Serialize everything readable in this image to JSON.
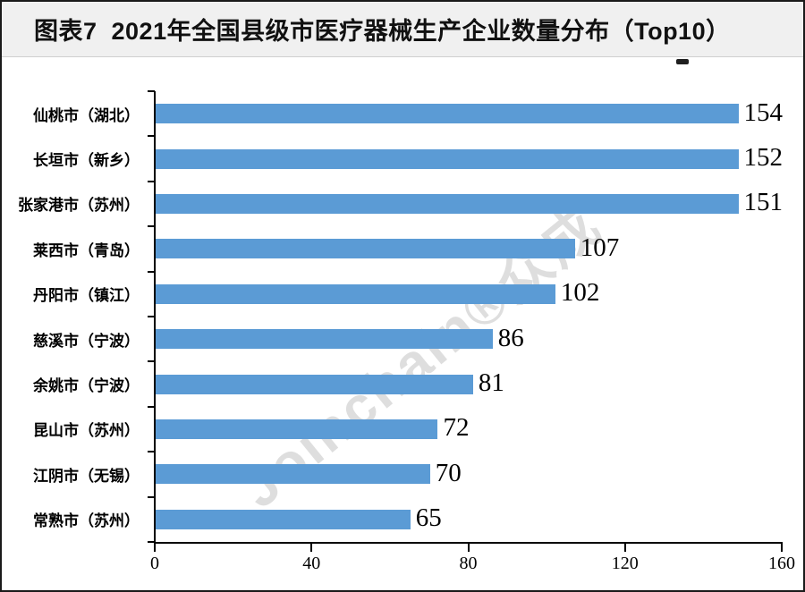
{
  "title": "图表7  2021年全国县级市医疗器械生产企业数量分布（Top10）",
  "watermark": "Joinchain®众成",
  "colors": {
    "bar": "#5B9BD5",
    "title_bg": "#f0f0f0",
    "frame_border": "#1a1a1a",
    "watermark": "rgba(0,0,0,0.13)"
  },
  "chart_data": {
    "type": "bar",
    "orientation": "horizontal",
    "title": "图表7  2021年全国县级市医疗器械生产企业数量分布（Top10）",
    "categories": [
      "仙桃市（湖北）",
      "长垣市（新乡）",
      "张家港市（苏州）",
      "莱西市（青岛）",
      "丹阳市（镇江）",
      "慈溪市（宁波）",
      "余姚市（宁波）",
      "昆山市（苏州）",
      "江阴市（无锡）",
      "常熟市（苏州）"
    ],
    "values": [
      154,
      152,
      151,
      107,
      102,
      86,
      81,
      72,
      70,
      65
    ],
    "xlabel": "",
    "ylabel": "",
    "xlim": [
      0,
      160
    ],
    "x_ticks": [
      0,
      40,
      80,
      120,
      160
    ],
    "value_labels_shown": true,
    "grid": false,
    "legend": false
  }
}
